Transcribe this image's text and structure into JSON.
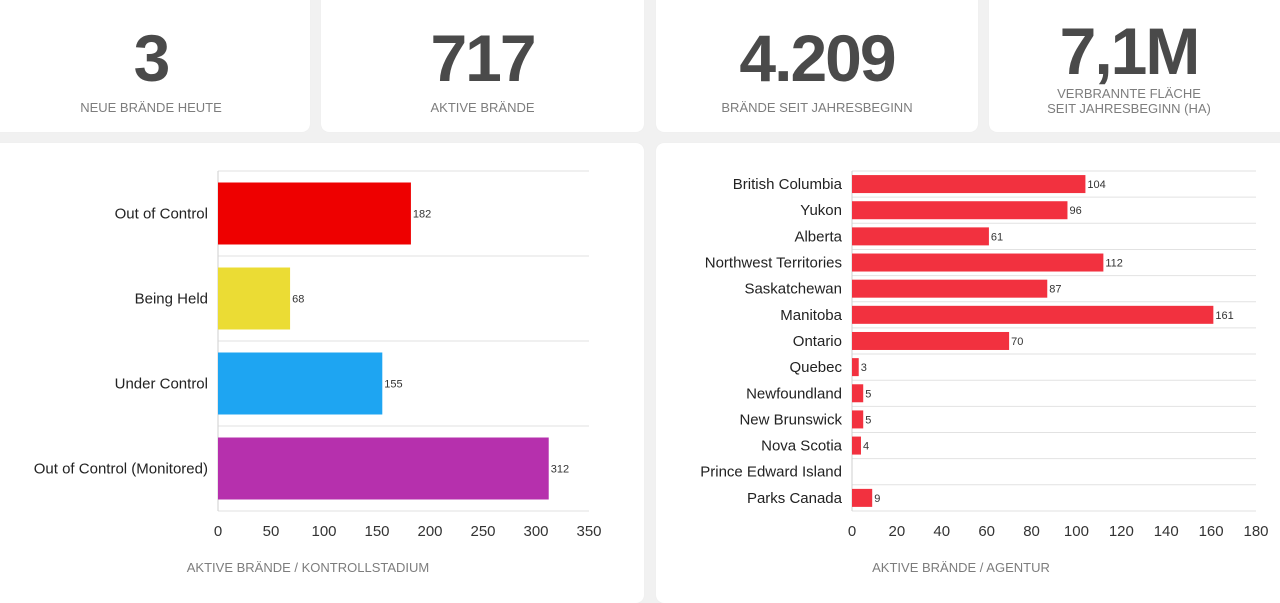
{
  "stats": [
    {
      "value": "3",
      "label": "Neue Brände heute"
    },
    {
      "value": "717",
      "label": "Aktive Brände"
    },
    {
      "value": "4.209",
      "label": "Brände seit Jahresbeginn"
    },
    {
      "value": "7,1M",
      "label_line1": "Verbrannte Fläche",
      "label_line2": "seit Jahresbeginn (ha)"
    }
  ],
  "colors": {
    "out_of_control": "#ee0000",
    "being_held": "#ebdc34",
    "under_control": "#1ea5f2",
    "monitored": "#b630ad",
    "agency_bar": "#f2313f"
  },
  "chart_data": [
    {
      "type": "bar",
      "orientation": "horizontal",
      "title": "Aktive Brände / Kontrollstadium",
      "categories": [
        "Out of Control",
        "Being Held",
        "Under Control",
        "Out of Control (Monitored)"
      ],
      "values": [
        182,
        68,
        155,
        312
      ],
      "xlim": [
        0,
        350
      ],
      "xticks": [
        0,
        50,
        100,
        150,
        200,
        250,
        300,
        350
      ]
    },
    {
      "type": "bar",
      "orientation": "horizontal",
      "title": "Aktive Brände / Agentur",
      "categories": [
        "British Columbia",
        "Yukon",
        "Alberta",
        "Northwest Territories",
        "Saskatchewan",
        "Manitoba",
        "Ontario",
        "Quebec",
        "Newfoundland",
        "New Brunswick",
        "Nova Scotia",
        "Prince Edward Island",
        "Parks Canada"
      ],
      "values": [
        104,
        96,
        61,
        112,
        87,
        161,
        70,
        3,
        5,
        5,
        4,
        null,
        9
      ],
      "xlim": [
        0,
        180
      ],
      "xticks": [
        0,
        20,
        40,
        60,
        80,
        100,
        120,
        140,
        160,
        180
      ]
    }
  ]
}
